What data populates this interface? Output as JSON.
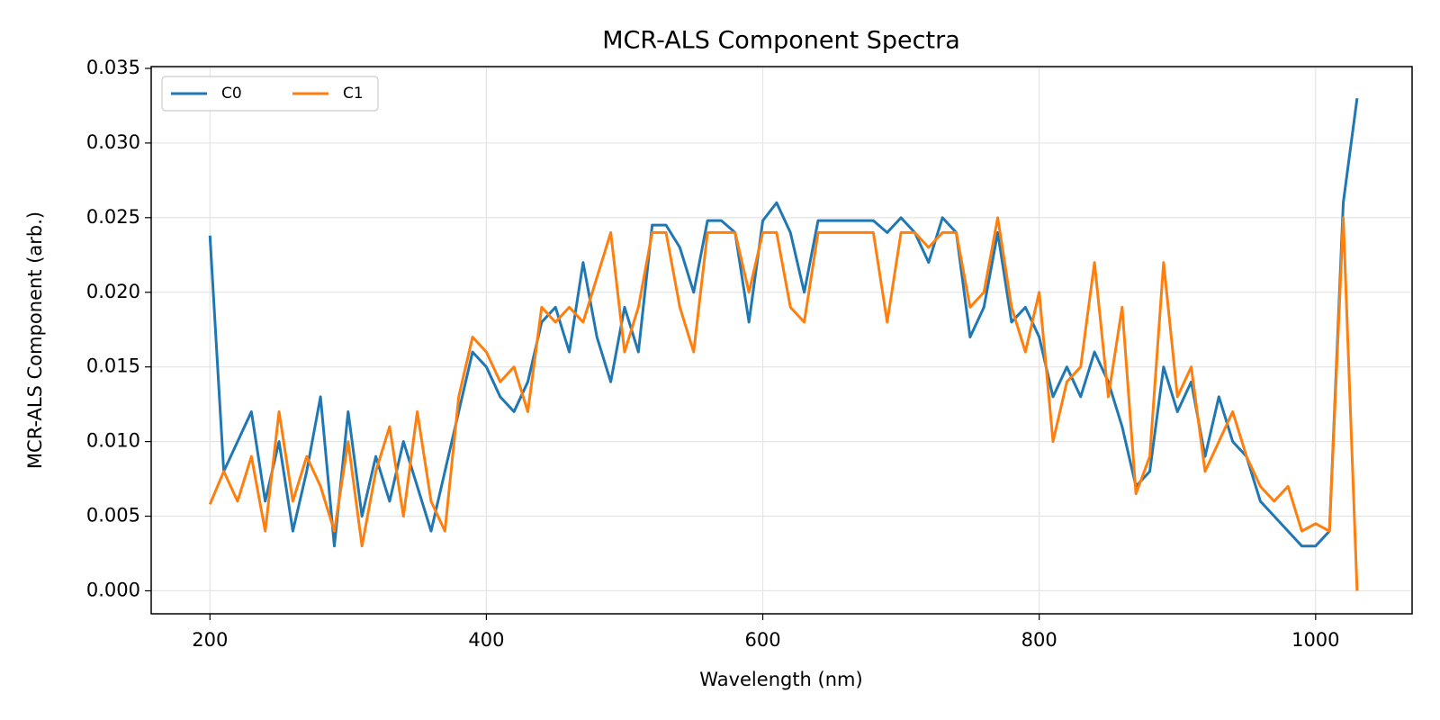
{
  "chart_data": {
    "type": "line",
    "title": "MCR-ALS Component Spectra",
    "x_label": "Wavelength (nm)",
    "y_label": "MCR-ALS Component (arb.)",
    "x": [
      200,
      210,
      220,
      230,
      240,
      250,
      260,
      270,
      280,
      290,
      300,
      310,
      320,
      330,
      340,
      350,
      360,
      370,
      380,
      390,
      400,
      410,
      420,
      430,
      440,
      450,
      460,
      470,
      480,
      490,
      500,
      510,
      520,
      530,
      540,
      550,
      560,
      570,
      580,
      590,
      600,
      610,
      620,
      630,
      640,
      650,
      660,
      670,
      680,
      690,
      700,
      710,
      720,
      730,
      740,
      750,
      760,
      770,
      780,
      790,
      800,
      810,
      820,
      830,
      840,
      850,
      860,
      870,
      880,
      890,
      900,
      910,
      920,
      930,
      940,
      950,
      960,
      970,
      980,
      990,
      1000,
      1010,
      1020,
      1030
    ],
    "series": [
      {
        "name": "C0",
        "color": "#1f77b4",
        "values": [
          0.0238,
          0.008,
          0.01,
          0.012,
          0.006,
          0.01,
          0.004,
          0.008,
          0.013,
          0.003,
          0.012,
          0.005,
          0.009,
          0.006,
          0.01,
          0.007,
          0.004,
          0.008,
          0.012,
          0.016,
          0.015,
          0.013,
          0.012,
          0.014,
          0.018,
          0.019,
          0.016,
          0.022,
          0.017,
          0.014,
          0.019,
          0.016,
          0.0245,
          0.0245,
          0.023,
          0.02,
          0.0248,
          0.0248,
          0.024,
          0.018,
          0.0248,
          0.026,
          0.024,
          0.02,
          0.0248,
          0.0248,
          0.0248,
          0.0248,
          0.0248,
          0.024,
          0.025,
          0.024,
          0.022,
          0.025,
          0.024,
          0.017,
          0.019,
          0.024,
          0.018,
          0.019,
          0.017,
          0.013,
          0.015,
          0.013,
          0.016,
          0.014,
          0.011,
          0.007,
          0.008,
          0.015,
          0.012,
          0.014,
          0.009,
          0.013,
          0.01,
          0.009,
          0.006,
          0.005,
          0.004,
          0.003,
          0.003,
          0.004,
          0.026,
          0.033
        ]
      },
      {
        "name": "C1",
        "color": "#ff7f0e",
        "values": [
          0.0058,
          0.008,
          0.006,
          0.009,
          0.004,
          0.012,
          0.006,
          0.009,
          0.007,
          0.004,
          0.01,
          0.003,
          0.008,
          0.011,
          0.005,
          0.012,
          0.006,
          0.004,
          0.013,
          0.017,
          0.016,
          0.014,
          0.015,
          0.012,
          0.019,
          0.018,
          0.019,
          0.018,
          0.021,
          0.024,
          0.016,
          0.019,
          0.024,
          0.024,
          0.019,
          0.016,
          0.024,
          0.024,
          0.024,
          0.02,
          0.024,
          0.024,
          0.019,
          0.018,
          0.024,
          0.024,
          0.024,
          0.024,
          0.024,
          0.018,
          0.024,
          0.024,
          0.023,
          0.024,
          0.024,
          0.019,
          0.02,
          0.025,
          0.019,
          0.016,
          0.02,
          0.01,
          0.014,
          0.015,
          0.022,
          0.013,
          0.019,
          0.0065,
          0.009,
          0.022,
          0.013,
          0.015,
          0.008,
          0.01,
          0.012,
          0.009,
          0.007,
          0.006,
          0.007,
          0.004,
          0.0045,
          0.004,
          0.025,
          0
        ]
      }
    ],
    "xlim": [
      157.5,
      1069.8
    ],
    "ylim": [
      -0.00154,
      0.03512
    ],
    "xticks": [
      200,
      400,
      600,
      800,
      1000
    ],
    "yticks": [
      {
        "value": 0,
        "label": "0.000"
      },
      {
        "value": 0.005,
        "label": "0.005"
      },
      {
        "value": 0.01,
        "label": "0.010"
      },
      {
        "value": 0.015,
        "label": "0.015"
      },
      {
        "value": 0.02,
        "label": "0.020"
      },
      {
        "value": 0.025,
        "label": "0.025"
      },
      {
        "value": 0.03,
        "label": "0.030"
      },
      {
        "value": 0.035,
        "label": "0.035"
      }
    ],
    "grid": true,
    "legend": "upper left"
  }
}
